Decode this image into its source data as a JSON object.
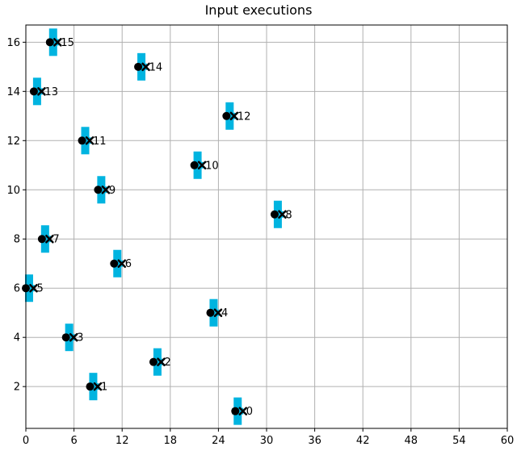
{
  "chart_data": {
    "type": "scatter",
    "title": "Input executions",
    "xlabel": "",
    "ylabel": "",
    "xlim": [
      0,
      60
    ],
    "ylim": [
      0.3,
      16.7
    ],
    "xticks": [
      0,
      6,
      12,
      18,
      24,
      30,
      36,
      42,
      48,
      54,
      60
    ],
    "yticks": [
      2,
      4,
      6,
      8,
      10,
      12,
      14,
      16
    ],
    "grid": true,
    "colors": {
      "dot": "#000000",
      "cross": "#000000",
      "rect": "#00b4e0",
      "grid": "#b0b0b0"
    },
    "points": [
      {
        "label": "0",
        "x": 26.1,
        "y": 1,
        "rect_x": 26.4
      },
      {
        "label": "1",
        "x": 8.0,
        "y": 2,
        "rect_x": 8.4
      },
      {
        "label": "2",
        "x": 15.9,
        "y": 3,
        "rect_x": 16.4
      },
      {
        "label": "3",
        "x": 5.0,
        "y": 4,
        "rect_x": 5.4
      },
      {
        "label": "4",
        "x": 23.0,
        "y": 5,
        "rect_x": 23.4
      },
      {
        "label": "5",
        "x": 0.0,
        "y": 6,
        "rect_x": 0.4
      },
      {
        "label": "6",
        "x": 11.0,
        "y": 7,
        "rect_x": 11.4
      },
      {
        "label": "7",
        "x": 2.0,
        "y": 8,
        "rect_x": 2.4
      },
      {
        "label": "8",
        "x": 31.0,
        "y": 9,
        "rect_x": 31.4
      },
      {
        "label": "9",
        "x": 9.0,
        "y": 10,
        "rect_x": 9.4
      },
      {
        "label": "10",
        "x": 21.0,
        "y": 11,
        "rect_x": 21.4
      },
      {
        "label": "11",
        "x": 7.0,
        "y": 12,
        "rect_x": 7.4
      },
      {
        "label": "12",
        "x": 25.0,
        "y": 13,
        "rect_x": 25.4
      },
      {
        "label": "13",
        "x": 1.0,
        "y": 14,
        "rect_x": 1.4
      },
      {
        "label": "14",
        "x": 14.0,
        "y": 15,
        "rect_x": 14.4
      },
      {
        "label": "15",
        "x": 3.0,
        "y": 16,
        "rect_x": 3.4
      }
    ]
  }
}
